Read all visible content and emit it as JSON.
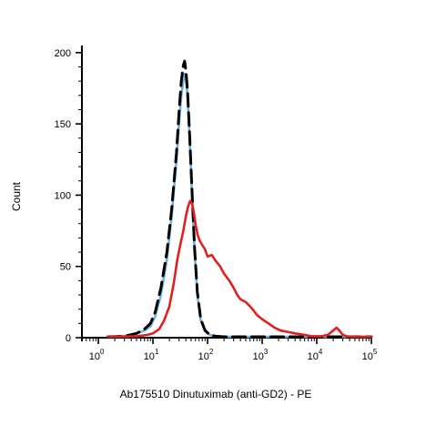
{
  "chart_data": {
    "type": "line",
    "title": "",
    "xlabel": "Ab175510 Dinutuximab (anti-GD2) - PE",
    "ylabel": "Count",
    "x_scale": "log",
    "xlim": [
      0.5,
      100000
    ],
    "ylim": [
      0,
      205
    ],
    "x_ticks": [
      1,
      10,
      100,
      1000,
      10000,
      100000
    ],
    "x_tick_labels": [
      {
        "base": "10",
        "exp": "0"
      },
      {
        "base": "10",
        "exp": "1"
      },
      {
        "base": "10",
        "exp": "2"
      },
      {
        "base": "10",
        "exp": "3"
      },
      {
        "base": "10",
        "exp": "4"
      },
      {
        "base": "10",
        "exp": "5"
      }
    ],
    "y_ticks": [
      0,
      50,
      100,
      150,
      200
    ],
    "y_tick_labels": [
      "0",
      "50",
      "100",
      "150",
      "200"
    ],
    "grid": false,
    "legend": "none",
    "series": [
      {
        "color": "#6fb1e0",
        "style": "solid",
        "x": [
          1.5,
          3,
          5,
          7,
          9,
          11,
          14,
          18,
          22,
          27,
          30,
          33,
          36,
          38,
          40,
          43,
          47,
          52,
          58,
          65,
          75,
          90,
          110,
          140,
          200,
          400,
          1000,
          100000
        ],
        "y": [
          0,
          1,
          3,
          5,
          8,
          15,
          30,
          55,
          85,
          125,
          150,
          170,
          180,
          185,
          183,
          170,
          140,
          100,
          60,
          30,
          12,
          5,
          2,
          1,
          0,
          0,
          0,
          0
        ]
      },
      {
        "color": "#000000",
        "style": "dashed",
        "x": [
          1.5,
          3,
          5,
          7,
          9,
          11,
          14,
          18,
          22,
          27,
          30,
          33,
          36,
          38,
          40,
          43,
          47,
          52,
          58,
          65,
          75,
          90,
          110,
          140,
          200,
          400,
          1000,
          100000
        ],
        "y": [
          0,
          1,
          3,
          6,
          10,
          18,
          35,
          60,
          90,
          130,
          158,
          180,
          191,
          194,
          188,
          173,
          142,
          102,
          62,
          32,
          13,
          5,
          2,
          1,
          0,
          0,
          0,
          0
        ]
      },
      {
        "color": "#e02020",
        "style": "solid",
        "x": [
          1.5,
          5,
          8,
          10,
          13,
          16,
          20,
          24,
          28,
          32,
          36,
          40,
          44,
          48,
          52,
          56,
          60,
          66,
          72,
          80,
          90,
          100,
          120,
          140,
          170,
          200,
          250,
          300,
          350,
          400,
          500,
          600,
          700,
          800,
          1000,
          1300,
          1700,
          2200,
          3000,
          4000,
          6000,
          8000,
          12000,
          16000,
          20000,
          23000,
          26000,
          30000,
          35000,
          45000,
          60000,
          100000
        ],
        "y": [
          0,
          1,
          2,
          3,
          6,
          12,
          22,
          38,
          55,
          66,
          75,
          85,
          92,
          96,
          94,
          88,
          80,
          72,
          68,
          65,
          62,
          57,
          58,
          54,
          50,
          45,
          40,
          35,
          30,
          27,
          25,
          22,
          19,
          16,
          13,
          10,
          7,
          5,
          4,
          3,
          2,
          1,
          1,
          2,
          5,
          7,
          5,
          2,
          1,
          0,
          0,
          0
        ]
      }
    ]
  }
}
